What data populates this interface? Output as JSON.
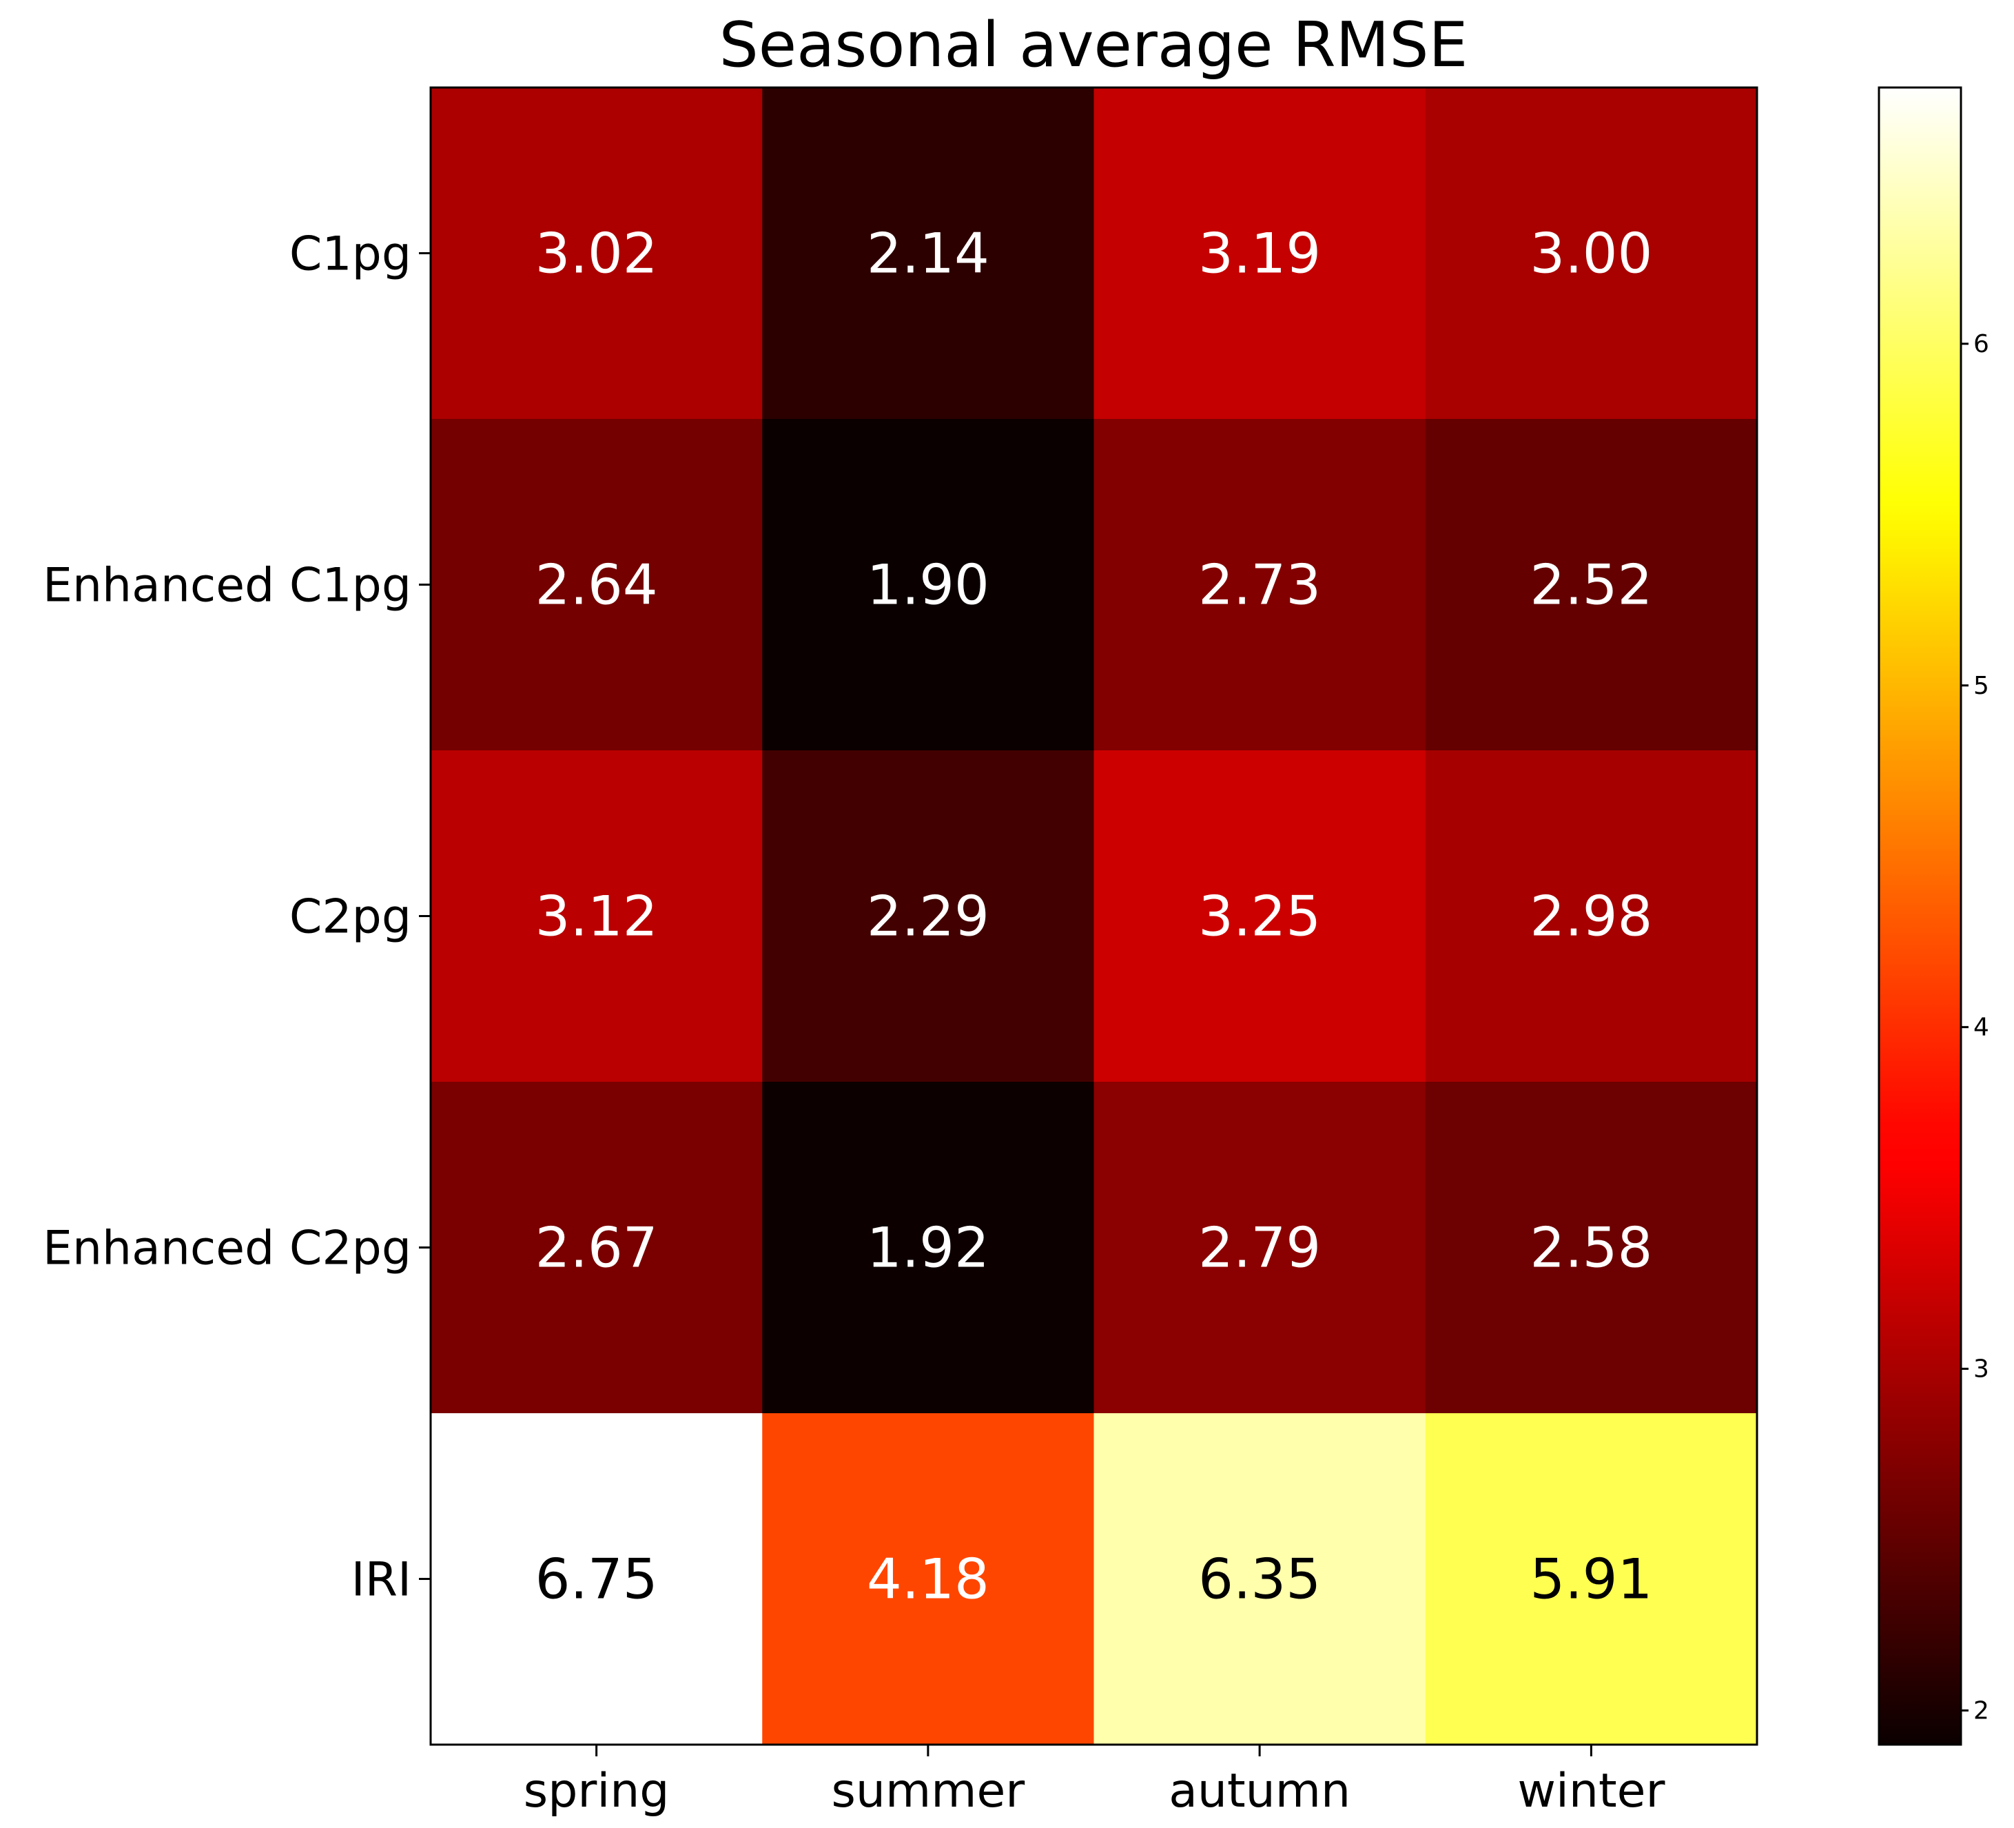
{
  "chart_data": {
    "type": "heatmap",
    "title": "Seasonal average RMSE",
    "xlabel": "",
    "ylabel": "",
    "columns": [
      "spring",
      "summer",
      "autumn",
      "winter"
    ],
    "rows": [
      "C1pg",
      "Enhanced C1pg",
      "C2pg",
      "Enhanced C2pg",
      "IRI"
    ],
    "values": [
      [
        3.02,
        2.14,
        3.19,
        3.0
      ],
      [
        2.64,
        1.9,
        2.73,
        2.52
      ],
      [
        3.12,
        2.29,
        3.25,
        2.98
      ],
      [
        2.67,
        1.92,
        2.79,
        2.58
      ],
      [
        6.75,
        4.18,
        6.35,
        5.91
      ]
    ],
    "cell_labels": [
      [
        "3.02",
        "2.14",
        "3.19",
        "3.00"
      ],
      [
        "2.64",
        "1.90",
        "2.73",
        "2.52"
      ],
      [
        "3.12",
        "2.29",
        "3.25",
        "2.98"
      ],
      [
        "2.67",
        "1.92",
        "2.79",
        "2.58"
      ],
      [
        "6.75",
        "4.18",
        "6.35",
        "5.91"
      ]
    ],
    "colormap": "hot",
    "colorbar": {
      "range": [
        1.9,
        6.75
      ],
      "ticks": [
        2,
        3,
        4,
        5,
        6
      ],
      "tick_labels": [
        "2",
        "3",
        "4",
        "5",
        "6"
      ]
    },
    "text_colors": {
      "dark_cell": "#ffffff",
      "light_cell": "#000000"
    },
    "grid": false
  }
}
